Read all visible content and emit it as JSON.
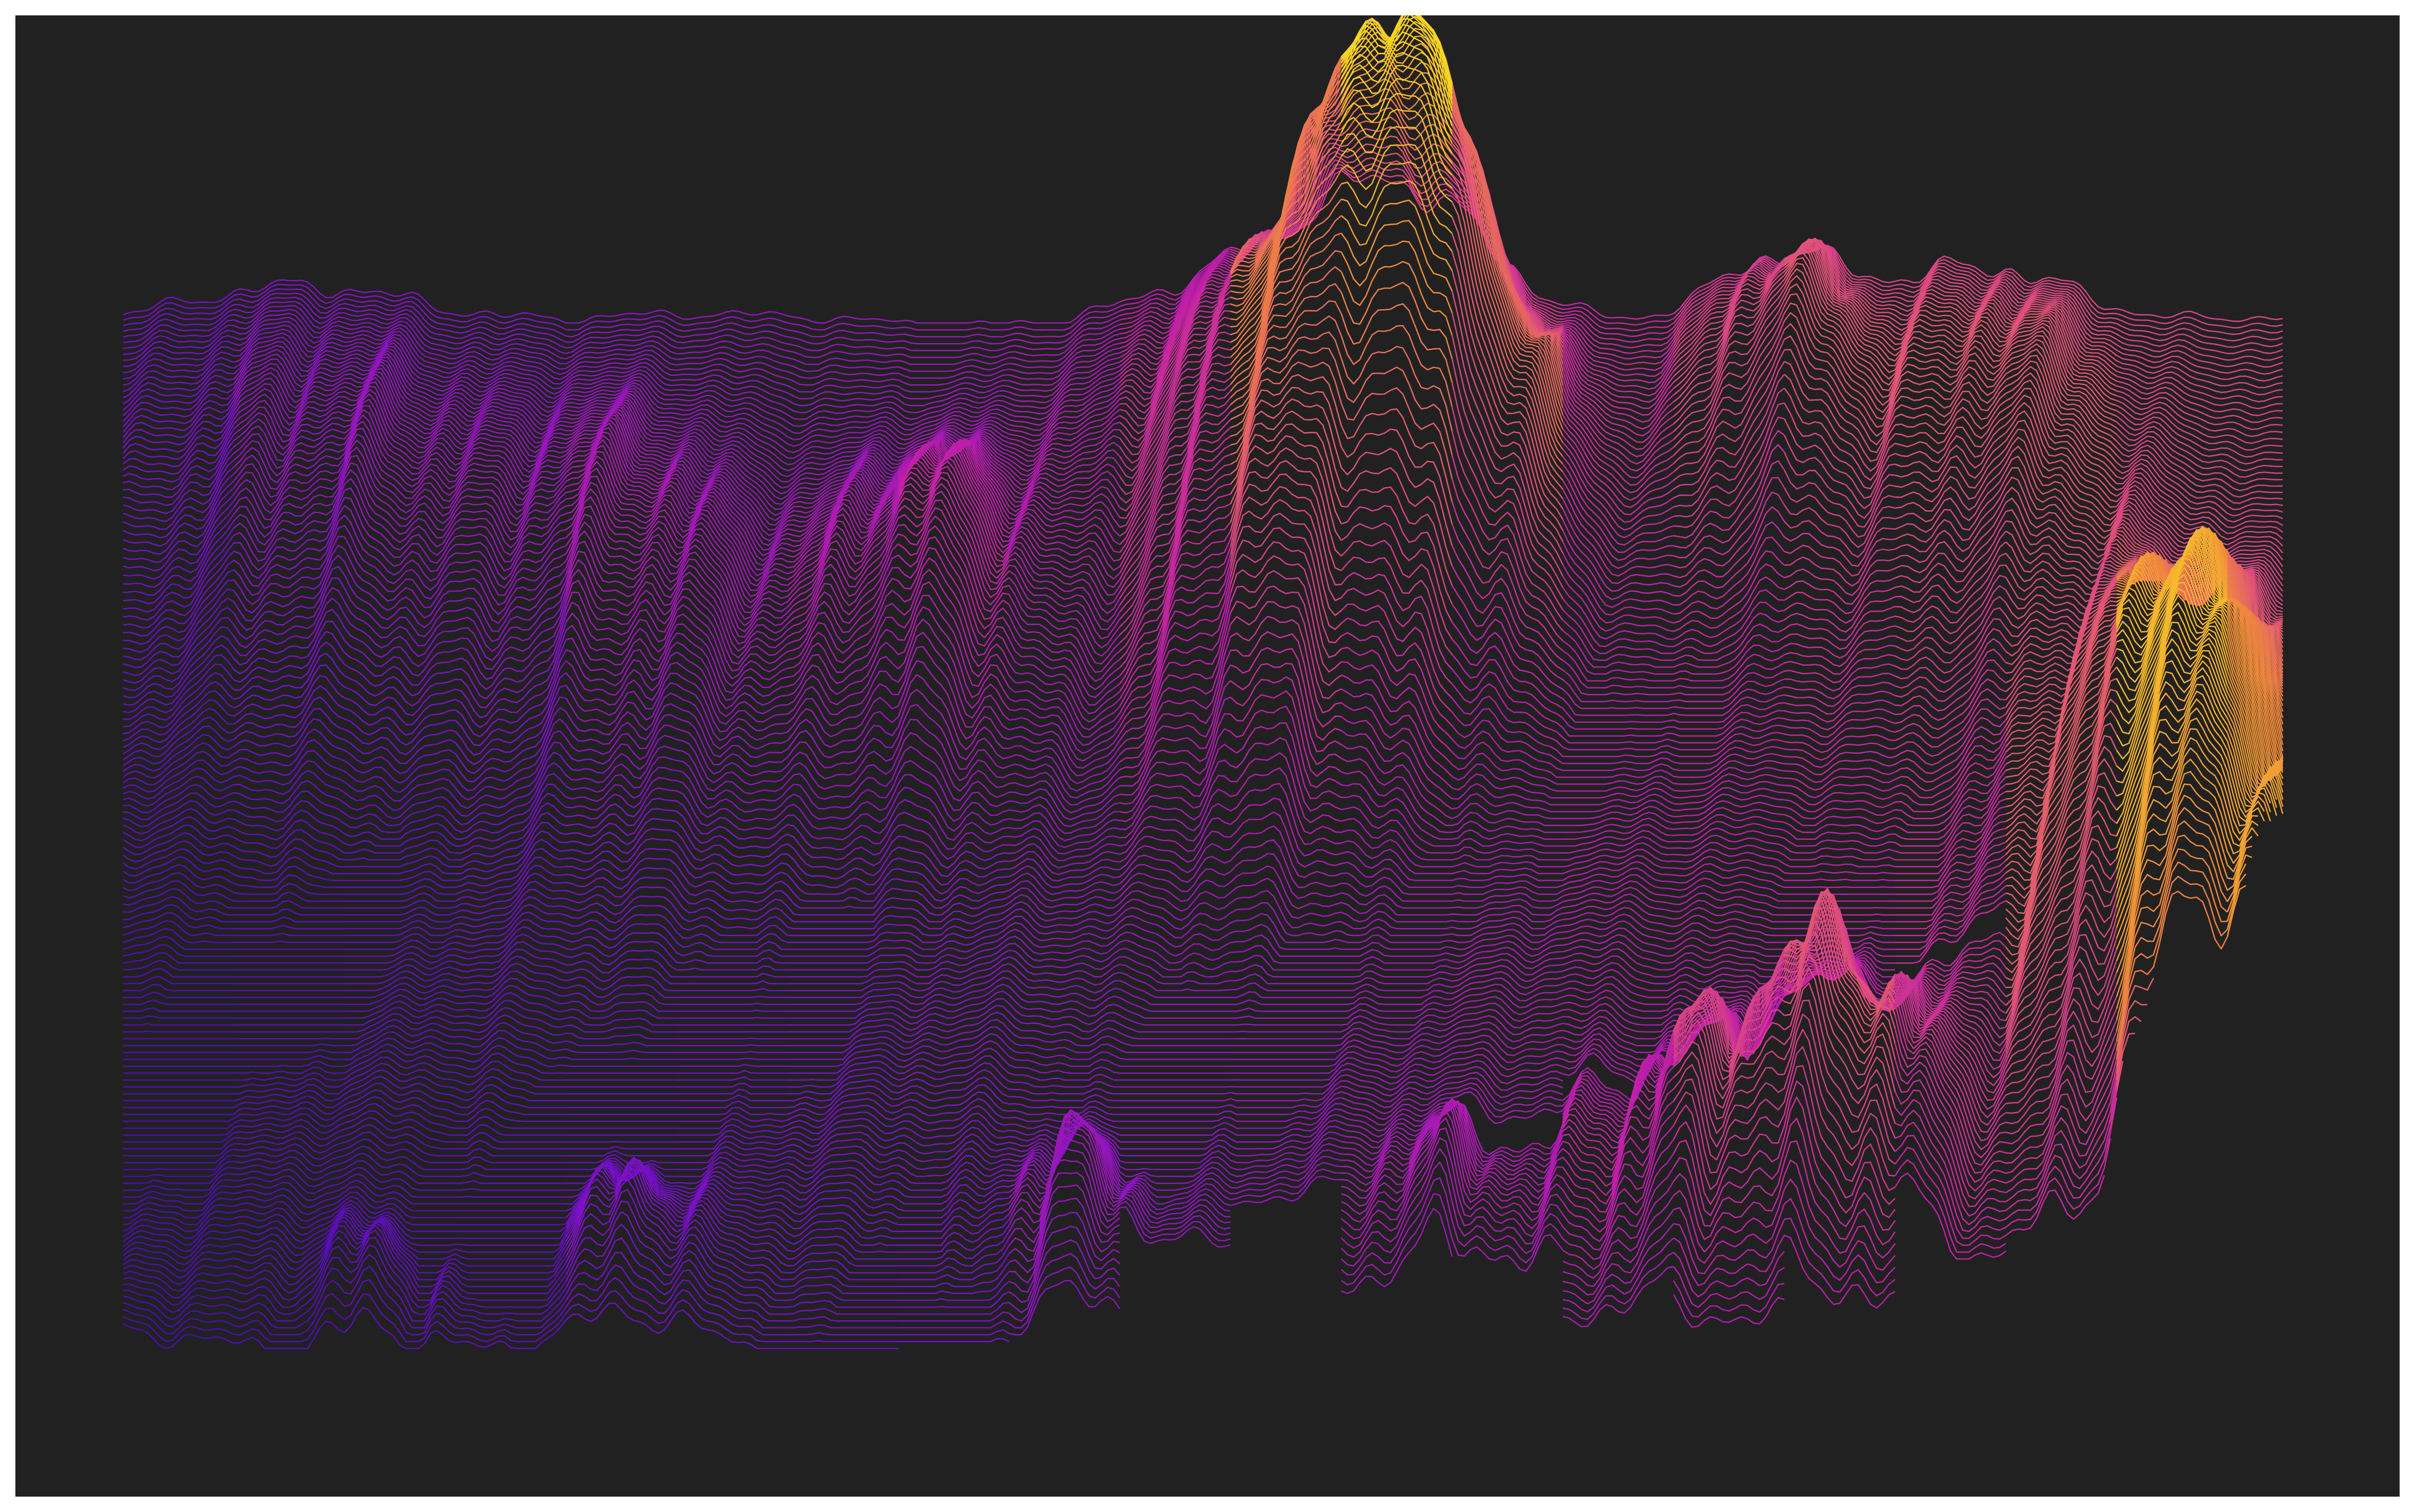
{
  "artwork": {
    "style": "ridgeline-terrain",
    "background_color": "#212121",
    "page_background_color": "#ffffff",
    "colormap": "plasma",
    "colors": {
      "deep": "#2a0aa0",
      "violet": "#7a10c8",
      "magenta": "#c01fa8",
      "pink": "#e0507a",
      "orange": "#f08a3c",
      "yellow": "#f8e020"
    },
    "ridge_line_count": 150
  }
}
